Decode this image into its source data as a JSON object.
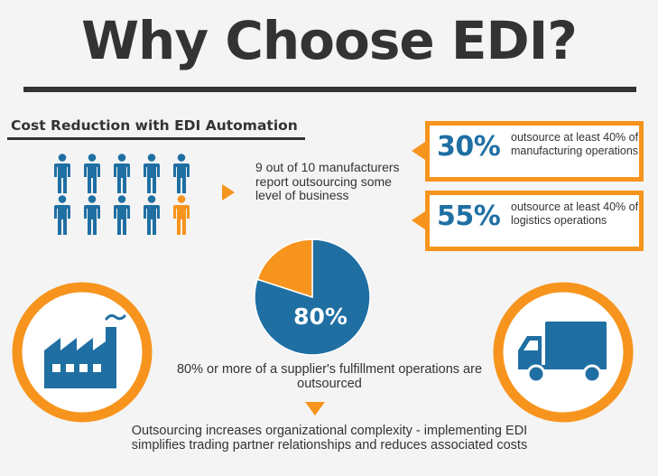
{
  "header": {
    "title": "Why Choose EDI?"
  },
  "section": {
    "title": "Cost Reduction with EDI Automation"
  },
  "people": {
    "total": 10,
    "highlighted": 1,
    "text": "9 out of 10 manufacturers report outsourcing some level of business"
  },
  "stats": [
    {
      "number": "30%",
      "text": "outsource at least 40% of manufacturing operations"
    },
    {
      "number": "55%",
      "text": "outsource at least 40% of logistics operations"
    }
  ],
  "chart_data": {
    "type": "pie",
    "slices": [
      {
        "label": "80%",
        "value": 80,
        "color": "#1f6fa3"
      },
      {
        "label": "",
        "value": 20,
        "color": "#f7941d"
      }
    ]
  },
  "pie": {
    "label": "80%",
    "caption": "80% or more of a supplier's fulfillment operations are outsourced"
  },
  "footer": {
    "text": "Outsourcing increases organizational complexity - implementing EDI simplifies trading partner relationships and reduces associated costs"
  },
  "icons": {
    "left": "factory-icon",
    "right": "truck-icon"
  },
  "colors": {
    "blue": "#1f6fa3",
    "orange": "#f7941d",
    "dark": "#333333",
    "background": "#f4f4f4"
  }
}
